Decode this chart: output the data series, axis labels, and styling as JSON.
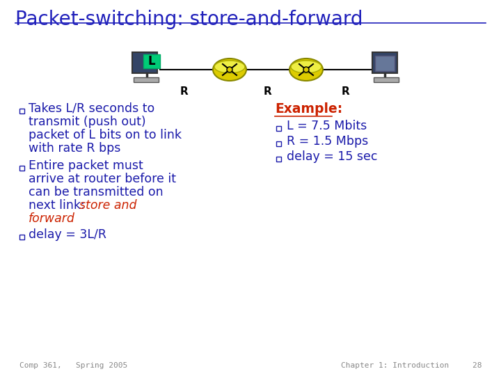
{
  "title": "Packet-switching: store-and-forward",
  "title_color": "#2020bb",
  "title_fontsize": 20,
  "background_color": "#ffffff",
  "bullet_color": "#1a1aaa",
  "red_color": "#cc2200",
  "bullet1_lines": [
    "Takes L/R seconds to",
    "transmit (push out)",
    "packet of L bits on to link",
    "with rate R bps"
  ],
  "bullet2_line0": "Entire packet must",
  "bullet2_line1": "arrive at router before it",
  "bullet2_line2": "can be transmitted on",
  "bullet2_line3_black": "next link: ",
  "bullet2_line3_red": "store and",
  "bullet2_line4_red": "forward",
  "bullet3": "delay = 3L/R",
  "example_title": "Example:",
  "example_lines": [
    "L = 7.5 Mbits",
    "R = 1.5 Mbps",
    "delay = 15 sec"
  ],
  "footer_left": "Comp 361,   Spring 2005",
  "footer_right": "Chapter 1: Introduction     28",
  "footer_color": "#888888",
  "footer_fontsize": 8
}
